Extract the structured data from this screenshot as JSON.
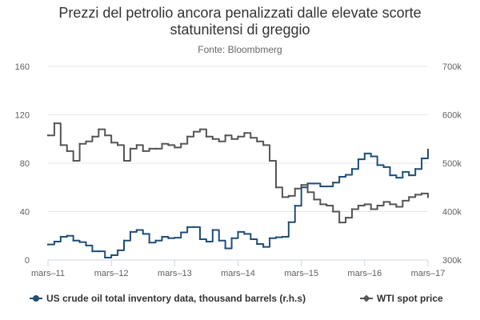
{
  "chart_data": {
    "type": "line",
    "title_lines": [
      "Prezzi del petrolio ancora penalizzati dalle elevate scorte",
      "statunitensi di greggio"
    ],
    "subtitle": "Fonte: Bloombmerg",
    "x_ticks": [
      "mars–11",
      "mars–12",
      "mars–13",
      "mars–14",
      "mars–15",
      "mars–16",
      "mars–17"
    ],
    "left_axis": {
      "ticks": [
        0,
        40,
        80,
        120,
        160
      ],
      "range": [
        0,
        160
      ]
    },
    "right_axis": {
      "ticks": [
        "300k",
        "400k",
        "500k",
        "600k",
        "700k"
      ],
      "range": [
        300000,
        700000
      ]
    },
    "grid": true,
    "legend_position": "bottom",
    "colors": {
      "inventory": "#1f4e79",
      "wti": "#555555",
      "grid": "#e6e6e6",
      "axis": "#ccd6eb"
    },
    "series": [
      {
        "name": "US crude oil total inventory data, thousand barrels (r.h.s)",
        "axis": "right",
        "x": [
          2011.0,
          2011.1,
          2011.2,
          2011.3,
          2011.4,
          2011.5,
          2011.6,
          2011.7,
          2011.8,
          2011.9,
          2012.0,
          2012.1,
          2012.2,
          2012.3,
          2012.4,
          2012.5,
          2012.6,
          2012.7,
          2012.8,
          2012.9,
          2013.0,
          2013.1,
          2013.2,
          2013.3,
          2013.4,
          2013.5,
          2013.6,
          2013.7,
          2013.8,
          2013.9,
          2014.0,
          2014.1,
          2014.2,
          2014.3,
          2014.4,
          2014.5,
          2014.6,
          2014.7,
          2014.8,
          2014.9,
          2015.0,
          2015.1,
          2015.2,
          2015.3,
          2015.4,
          2015.5,
          2015.6,
          2015.7,
          2015.8,
          2015.9,
          2016.0,
          2016.1,
          2016.2,
          2016.3,
          2016.4,
          2016.5,
          2016.6,
          2016.7,
          2016.8,
          2016.9,
          2017.0
        ],
        "values": [
          332000,
          338000,
          348000,
          350000,
          340000,
          337000,
          330000,
          318000,
          318000,
          305000,
          310000,
          320000,
          340000,
          358000,
          362000,
          354000,
          336000,
          340000,
          348000,
          345000,
          346000,
          357000,
          368000,
          368000,
          343000,
          338000,
          362000,
          340000,
          324000,
          345000,
          358000,
          354000,
          343000,
          333000,
          327000,
          345000,
          347000,
          348000,
          378000,
          412000,
          450000,
          458000,
          458000,
          452000,
          452000,
          460000,
          472000,
          476000,
          488000,
          508000,
          520000,
          514000,
          496000,
          492000,
          475000,
          470000,
          482000,
          475000,
          488000,
          510000,
          528000
        ]
      },
      {
        "name": "WTI spot price",
        "axis": "left",
        "x": [
          2011.0,
          2011.1,
          2011.2,
          2011.3,
          2011.4,
          2011.5,
          2011.6,
          2011.7,
          2011.8,
          2011.9,
          2012.0,
          2012.1,
          2012.2,
          2012.3,
          2012.4,
          2012.5,
          2012.6,
          2012.7,
          2012.8,
          2012.9,
          2013.0,
          2013.1,
          2013.2,
          2013.3,
          2013.4,
          2013.5,
          2013.6,
          2013.7,
          2013.8,
          2013.9,
          2014.0,
          2014.1,
          2014.2,
          2014.3,
          2014.4,
          2014.5,
          2014.6,
          2014.7,
          2014.8,
          2014.9,
          2015.0,
          2015.1,
          2015.2,
          2015.3,
          2015.4,
          2015.5,
          2015.6,
          2015.7,
          2015.8,
          2015.9,
          2016.0,
          2016.1,
          2016.2,
          2016.3,
          2016.4,
          2016.5,
          2016.6,
          2016.7,
          2016.8,
          2016.9,
          2017.0
        ],
        "values": [
          103,
          113,
          95,
          90,
          82,
          96,
          98,
          102,
          108,
          103,
          97,
          95,
          82,
          92,
          95,
          90,
          92,
          92,
          96,
          95,
          93,
          96,
          102,
          106,
          108,
          102,
          100,
          98,
          103,
          100,
          102,
          105,
          101,
          98,
          95,
          82,
          60,
          52,
          53,
          59,
          62,
          56,
          50,
          46,
          45,
          40,
          31,
          35,
          42,
          45,
          46,
          42,
          45,
          48,
          46,
          44,
          49,
          52,
          54,
          55,
          52
        ]
      }
    ]
  }
}
